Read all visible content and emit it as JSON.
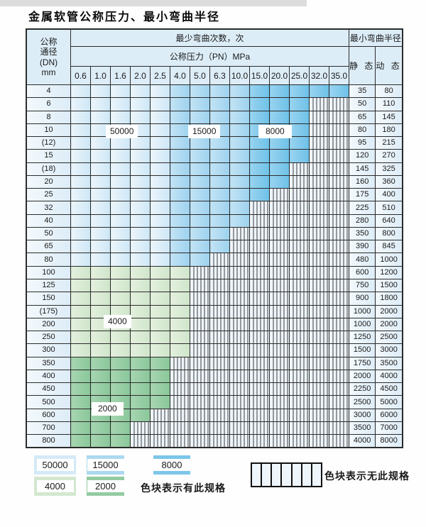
{
  "title": "金属软管公称压力、最小弯曲半径",
  "table": {
    "header": {
      "dn_lines": [
        "公称",
        "通径",
        "(DN)",
        "mm"
      ],
      "cycles_label": "最少弯曲次数，次",
      "radius_label": "最小弯曲半径",
      "pressure_label": "公称压力（PN）MPa",
      "static_label": "静 态",
      "dynamic_label": "动 态"
    },
    "pressures": [
      "0.6",
      "1.0",
      "1.6",
      "2.0",
      "2.5",
      "4.0",
      "5.0",
      "6.3",
      "10.0",
      "15.0",
      "20.0",
      "25.0",
      "32.0",
      "35.0"
    ],
    "zones": {
      "blue_light_cycles": "50000",
      "blue_medium_cycles": "15000",
      "blue_dark_cycles": "8000",
      "green_light_cycles": "4000",
      "green_dark_cycles": "2000",
      "blue_light_last_index": 4,
      "blue_medium_last_index": 8
    },
    "rows": [
      {
        "dn": "4",
        "cols": 14,
        "fill": "blue",
        "static": "35",
        "dynamic": "80"
      },
      {
        "dn": "6",
        "cols": 12,
        "fill": "blue",
        "static": "50",
        "dynamic": "110"
      },
      {
        "dn": "8",
        "cols": 12,
        "fill": "blue",
        "static": "65",
        "dynamic": "145"
      },
      {
        "dn": "10",
        "cols": 12,
        "fill": "blue",
        "static": "80",
        "dynamic": "180"
      },
      {
        "dn": "(12)",
        "cols": 12,
        "fill": "blue",
        "static": "95",
        "dynamic": "215"
      },
      {
        "dn": "15",
        "cols": 12,
        "fill": "blue",
        "static": "120",
        "dynamic": "270"
      },
      {
        "dn": "(18)",
        "cols": 11,
        "fill": "blue",
        "static": "145",
        "dynamic": "325"
      },
      {
        "dn": "20",
        "cols": 11,
        "fill": "blue",
        "static": "160",
        "dynamic": "360"
      },
      {
        "dn": "25",
        "cols": 10,
        "fill": "blue",
        "static": "175",
        "dynamic": "400"
      },
      {
        "dn": "32",
        "cols": 9,
        "fill": "blue",
        "static": "225",
        "dynamic": "510"
      },
      {
        "dn": "40",
        "cols": 9,
        "fill": "blue",
        "static": "280",
        "dynamic": "640"
      },
      {
        "dn": "50",
        "cols": 8,
        "fill": "blue",
        "static": "350",
        "dynamic": "800"
      },
      {
        "dn": "65",
        "cols": 8,
        "fill": "blue",
        "static": "390",
        "dynamic": "845"
      },
      {
        "dn": "80",
        "cols": 7,
        "fill": "blue",
        "static": "480",
        "dynamic": "1000"
      },
      {
        "dn": "100",
        "cols": 6,
        "fill": "green-light",
        "static": "600",
        "dynamic": "1200"
      },
      {
        "dn": "125",
        "cols": 6,
        "fill": "green-light",
        "static": "750",
        "dynamic": "1500"
      },
      {
        "dn": "150",
        "cols": 6,
        "fill": "green-light",
        "static": "900",
        "dynamic": "1800"
      },
      {
        "dn": "(175)",
        "cols": 6,
        "fill": "green-light",
        "static": "1000",
        "dynamic": "2000"
      },
      {
        "dn": "200",
        "cols": 6,
        "fill": "green-light",
        "static": "1000",
        "dynamic": "2000"
      },
      {
        "dn": "250",
        "cols": 6,
        "fill": "green-light",
        "static": "1250",
        "dynamic": "2500"
      },
      {
        "dn": "300",
        "cols": 6,
        "fill": "green-light",
        "static": "1500",
        "dynamic": "3000"
      },
      {
        "dn": "350",
        "cols": 5,
        "fill": "green-dark",
        "static": "1750",
        "dynamic": "3500"
      },
      {
        "dn": "400",
        "cols": 5,
        "fill": "green-dark",
        "static": "2000",
        "dynamic": "4000"
      },
      {
        "dn": "450",
        "cols": 5,
        "fill": "green-dark",
        "static": "2250",
        "dynamic": "4500"
      },
      {
        "dn": "500",
        "cols": 5,
        "fill": "green-dark",
        "static": "2500",
        "dynamic": "5000"
      },
      {
        "dn": "600",
        "cols": 4,
        "fill": "green-dark",
        "static": "3000",
        "dynamic": "6000"
      },
      {
        "dn": "700",
        "cols": 3,
        "fill": "green-dark",
        "static": "3500",
        "dynamic": "7000"
      },
      {
        "dn": "800",
        "cols": 3,
        "fill": "green-dark",
        "static": "4000",
        "dynamic": "8000"
      }
    ]
  },
  "zone_labels": {
    "z50000": "50000",
    "z15000": "15000",
    "z8000": "8000",
    "z4000": "4000",
    "z2000": "2000"
  },
  "legend": {
    "swatches": [
      {
        "label": "50000",
        "color": "#d5eaf7"
      },
      {
        "label": "15000",
        "color": "#abd9f1"
      },
      {
        "label": "8000",
        "color": "#7cc6ea"
      },
      {
        "label": "4000",
        "color": "#d4e8d0"
      },
      {
        "label": "2000",
        "color": "#93cba1"
      }
    ],
    "has_spec_text": "色块表示有此规格",
    "no_spec_text": "色块表示无此规格",
    "hatch_cells": 7
  },
  "colors": {
    "zone_50000": "#d5eaf7",
    "zone_15000": "#abd9f1",
    "zone_8000": "#7cc6ea",
    "zone_4000": "#d4e8d0",
    "zone_2000": "#93cba1",
    "hatch_bg": "#eef5fb",
    "hatch_line": "#3c3c3c",
    "grid": "#2b2b2b",
    "header_bg": "#ddedf8"
  }
}
